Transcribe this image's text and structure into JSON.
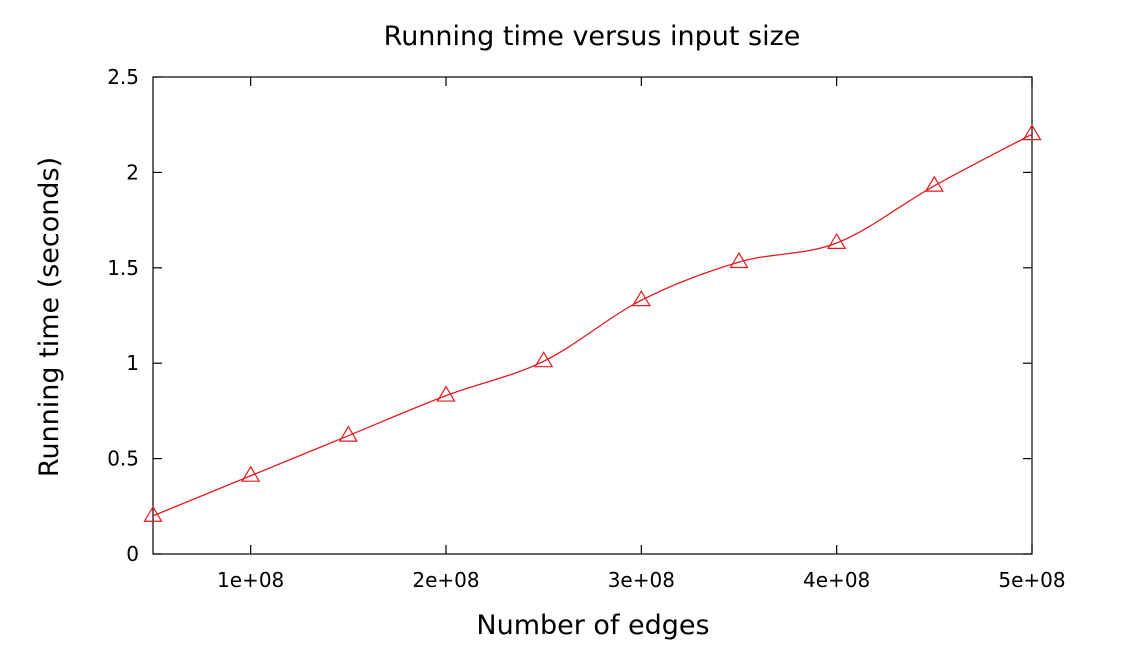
{
  "chart_data": {
    "type": "line",
    "title": "Running time versus input size",
    "xlabel": "Number of edges",
    "ylabel": "Running time (seconds)",
    "xlim": [
      50000000,
      500000000
    ],
    "ylim": [
      0,
      2.5
    ],
    "x_ticks": [
      100000000,
      200000000,
      300000000,
      400000000,
      500000000
    ],
    "x_tick_labels": [
      "1e+08",
      "2e+08",
      "3e+08",
      "4e+08",
      "5e+08"
    ],
    "y_ticks": [
      0,
      0.5,
      1,
      1.5,
      2,
      2.5
    ],
    "y_tick_labels": [
      "0",
      "0.5",
      "1",
      "1.5",
      "2",
      "2.5"
    ],
    "grid": false,
    "legend": "none",
    "smoothed": true,
    "series": [
      {
        "color": "#e41a1c",
        "marker": "triangle-open",
        "x": [
          50000000,
          100000000,
          150000000,
          200000000,
          250000000,
          300000000,
          350000000,
          400000000,
          450000000,
          500000000
        ],
        "y": [
          0.2,
          0.41,
          0.62,
          0.83,
          1.01,
          1.33,
          1.53,
          1.63,
          1.93,
          2.2
        ]
      }
    ]
  }
}
